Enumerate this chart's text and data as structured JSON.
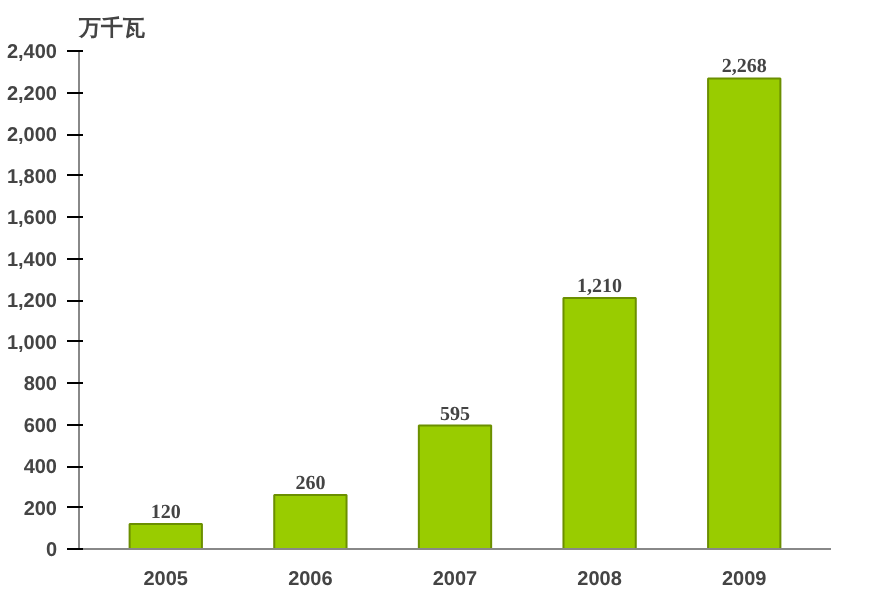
{
  "chart_data": {
    "type": "bar",
    "ylabel": "万千瓦",
    "categories": [
      "2005",
      "2006",
      "2007",
      "2008",
      "2009"
    ],
    "values": [
      120,
      260,
      595,
      1210,
      2268
    ],
    "value_labels": [
      "120",
      "260",
      "595",
      "1,210",
      "2,268"
    ],
    "color": "#99cc00",
    "ylim": [
      0,
      2400
    ],
    "yticks": [
      0,
      {
        "value": 200,
        "label": "200"
      },
      {
        "value": 400,
        "label": "400"
      },
      {
        "value": 600,
        "label": "600"
      },
      {
        "value": 800,
        "label": "800"
      },
      {
        "value": 1000,
        "label": "1,000"
      },
      {
        "value": 1200,
        "label": "1,200"
      },
      {
        "value": 1400,
        "label": "1,400"
      },
      {
        "value": 1600,
        "label": "1,600"
      },
      {
        "value": 1800,
        "label": "1,800"
      },
      {
        "value": 2000,
        "label": "2,000"
      },
      {
        "value": 2200,
        "label": "2,200"
      },
      {
        "value": 2400,
        "label": "2,400"
      }
    ],
    "grid": false
  }
}
